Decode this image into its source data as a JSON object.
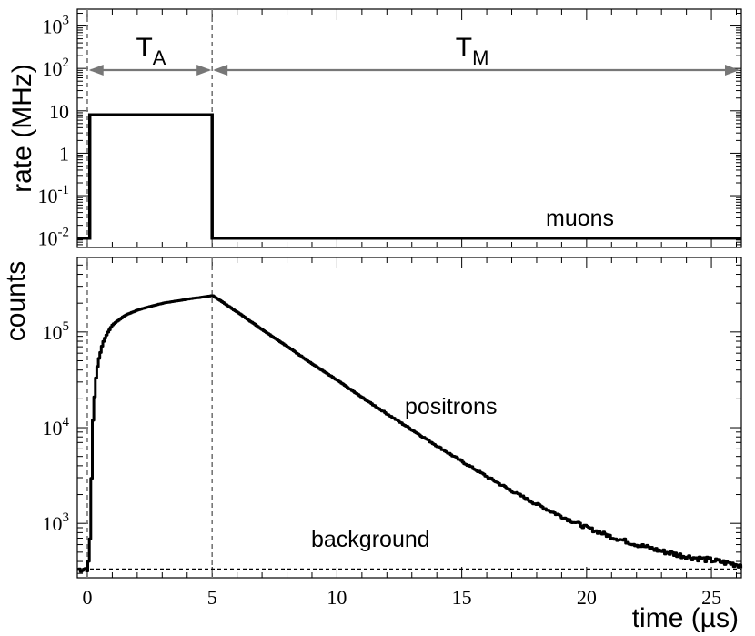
{
  "chart_data": [
    {
      "type": "line",
      "panel": "top",
      "ylabel": "rate (MHz)",
      "yscale": "log",
      "ylim": [
        0.006,
        2500
      ],
      "xlim": [
        -0.4,
        26.2
      ],
      "yticks": [
        {
          "value": 0.01,
          "base": "10",
          "exp": "-2"
        },
        {
          "value": 0.1,
          "base": "10",
          "exp": "-1"
        },
        {
          "value": 1,
          "base": "1",
          "exp": ""
        },
        {
          "value": 10,
          "base": "10",
          "exp": ""
        },
        {
          "value": 100,
          "base": "10",
          "exp": "2"
        },
        {
          "value": 1000,
          "base": "10",
          "exp": "3"
        }
      ],
      "series": [
        {
          "name": "muons",
          "x": [
            -0.4,
            0.1,
            0.1,
            5.0,
            5.0,
            26.2
          ],
          "y": [
            0.01,
            0.01,
            8,
            8,
            0.01,
            0.01
          ]
        }
      ],
      "intervals": [
        {
          "base": "T",
          "sub": "A",
          "from": 0.1,
          "to": 5.0
        },
        {
          "base": "T",
          "sub": "M",
          "from": 5.0,
          "to": 26.2
        }
      ]
    },
    {
      "type": "line",
      "panel": "bottom",
      "xlabel": "time (µs)",
      "ylabel": "counts",
      "yscale": "log",
      "ylim": [
        270,
        600000
      ],
      "xlim": [
        -0.4,
        26.2
      ],
      "xticks": [
        0,
        5,
        10,
        15,
        20,
        25
      ],
      "xtick_labels": [
        "0",
        "5",
        "10",
        "15",
        "20",
        "25"
      ],
      "yticks": [
        {
          "value": 1000,
          "base": "10",
          "exp": "3"
        },
        {
          "value": 10000,
          "base": "10",
          "exp": "4"
        },
        {
          "value": 100000,
          "base": "10",
          "exp": "5"
        }
      ],
      "series": [
        {
          "name": "positrons",
          "x": [
            -0.4,
            0.0,
            0.05,
            0.1,
            0.15,
            0.2,
            0.3,
            0.4,
            0.6,
            0.8,
            1.0,
            1.5,
            2.0,
            2.5,
            3.0,
            3.5,
            4.0,
            4.5,
            5.0,
            6,
            7,
            8,
            9,
            10,
            11,
            12,
            13,
            14,
            15,
            16,
            17,
            18,
            19,
            20,
            21,
            22,
            23,
            24,
            25,
            26.2
          ],
          "y": [
            330,
            340,
            450,
            900,
            4000,
            12000,
            30000,
            48000,
            78000,
            100000,
            120000,
            150000,
            170000,
            185000,
            200000,
            210000,
            220000,
            230000,
            240000,
            160000,
            105000,
            70000,
            46000,
            31000,
            20500,
            13800,
            9400,
            6400,
            4400,
            3060,
            2170,
            1570,
            1170,
            900,
            720,
            600,
            510,
            450,
            410,
            365
          ]
        },
        {
          "name": "background",
          "x": [
            -0.4,
            26.2
          ],
          "y": [
            330,
            330
          ]
        }
      ]
    }
  ]
}
